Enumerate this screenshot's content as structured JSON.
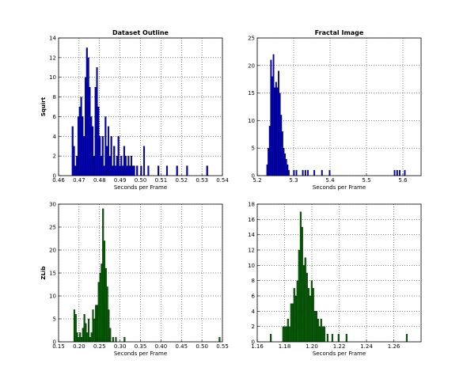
{
  "chart_data": [
    {
      "type": "bar",
      "title": "Dataset Outline",
      "xlabel": "Seconds per Frame",
      "ylabel": "Squirt",
      "color": "#0000cc",
      "grid": true,
      "xlim": [
        0.46,
        0.54
      ],
      "ylim": [
        0,
        14
      ],
      "xticks": [
        "0.46",
        "0.47",
        "0.48",
        "0.49",
        "0.50",
        "0.51",
        "0.52",
        "0.53",
        "0.54"
      ],
      "yticks": [
        "0",
        "2",
        "4",
        "6",
        "8",
        "10",
        "12",
        "14"
      ],
      "bin_width": 0.0007,
      "bars": [
        {
          "x": 0.4665,
          "y": 5
        },
        {
          "x": 0.4672,
          "y": 3
        },
        {
          "x": 0.4679,
          "y": 1
        },
        {
          "x": 0.4686,
          "y": 2
        },
        {
          "x": 0.4693,
          "y": 6
        },
        {
          "x": 0.47,
          "y": 7
        },
        {
          "x": 0.4707,
          "y": 8
        },
        {
          "x": 0.4714,
          "y": 6
        },
        {
          "x": 0.4721,
          "y": 4
        },
        {
          "x": 0.4728,
          "y": 10
        },
        {
          "x": 0.4735,
          "y": 13
        },
        {
          "x": 0.4742,
          "y": 12
        },
        {
          "x": 0.4749,
          "y": 9
        },
        {
          "x": 0.4756,
          "y": 6
        },
        {
          "x": 0.4763,
          "y": 5
        },
        {
          "x": 0.477,
          "y": 2
        },
        {
          "x": 0.4777,
          "y": 9
        },
        {
          "x": 0.4784,
          "y": 11
        },
        {
          "x": 0.4791,
          "y": 7
        },
        {
          "x": 0.4798,
          "y": 4
        },
        {
          "x": 0.4805,
          "y": 2
        },
        {
          "x": 0.4812,
          "y": 4
        },
        {
          "x": 0.4819,
          "y": 1
        },
        {
          "x": 0.4826,
          "y": 6
        },
        {
          "x": 0.4833,
          "y": 3
        },
        {
          "x": 0.484,
          "y": 5
        },
        {
          "x": 0.4847,
          "y": 2
        },
        {
          "x": 0.4854,
          "y": 4
        },
        {
          "x": 0.4861,
          "y": 1
        },
        {
          "x": 0.4868,
          "y": 3
        },
        {
          "x": 0.4875,
          "y": 1
        },
        {
          "x": 0.4882,
          "y": 2
        },
        {
          "x": 0.4889,
          "y": 4
        },
        {
          "x": 0.4896,
          "y": 1
        },
        {
          "x": 0.4903,
          "y": 2
        },
        {
          "x": 0.491,
          "y": 1
        },
        {
          "x": 0.4917,
          "y": 3
        },
        {
          "x": 0.4924,
          "y": 2
        },
        {
          "x": 0.4931,
          "y": 1
        },
        {
          "x": 0.4938,
          "y": 2
        },
        {
          "x": 0.4945,
          "y": 1
        },
        {
          "x": 0.4952,
          "y": 2
        },
        {
          "x": 0.4959,
          "y": 1
        },
        {
          "x": 0.4966,
          "y": 1
        },
        {
          "x": 0.498,
          "y": 1
        },
        {
          "x": 0.5,
          "y": 1
        },
        {
          "x": 0.5014,
          "y": 3
        },
        {
          "x": 0.5035,
          "y": 1
        },
        {
          "x": 0.5084,
          "y": 1
        },
        {
          "x": 0.5126,
          "y": 1
        },
        {
          "x": 0.5175,
          "y": 1
        },
        {
          "x": 0.5224,
          "y": 1
        },
        {
          "x": 0.5322,
          "y": 1
        }
      ]
    },
    {
      "type": "bar",
      "title": "Fractal Image",
      "xlabel": "Seconds per Frame",
      "ylabel": "",
      "color": "#0000cc",
      "grid": true,
      "xlim": [
        5.2,
        5.65
      ],
      "ylim": [
        0,
        25
      ],
      "xticks": [
        "5.2",
        "5.3",
        "5.4",
        "5.5",
        "5.6"
      ],
      "yticks": [
        "0",
        "5",
        "10",
        "15",
        "20",
        "25"
      ],
      "bin_width": 0.0035,
      "bars": [
        {
          "x": 5.2255,
          "y": 2
        },
        {
          "x": 5.229,
          "y": 5
        },
        {
          "x": 5.2325,
          "y": 9
        },
        {
          "x": 5.236,
          "y": 21
        },
        {
          "x": 5.2395,
          "y": 18
        },
        {
          "x": 5.243,
          "y": 22
        },
        {
          "x": 5.2465,
          "y": 16
        },
        {
          "x": 5.25,
          "y": 17
        },
        {
          "x": 5.2535,
          "y": 16
        },
        {
          "x": 5.257,
          "y": 19
        },
        {
          "x": 5.2605,
          "y": 15
        },
        {
          "x": 5.264,
          "y": 11
        },
        {
          "x": 5.2675,
          "y": 8
        },
        {
          "x": 5.271,
          "y": 5
        },
        {
          "x": 5.2745,
          "y": 4
        },
        {
          "x": 5.278,
          "y": 3
        },
        {
          "x": 5.2815,
          "y": 2
        },
        {
          "x": 5.285,
          "y": 1
        },
        {
          "x": 5.299,
          "y": 1
        },
        {
          "x": 5.306,
          "y": 1
        },
        {
          "x": 5.3235,
          "y": 1
        },
        {
          "x": 5.3305,
          "y": 1
        },
        {
          "x": 5.3375,
          "y": 1
        },
        {
          "x": 5.355,
          "y": 1
        },
        {
          "x": 5.376,
          "y": 1
        },
        {
          "x": 5.397,
          "y": 1
        },
        {
          "x": 5.5755,
          "y": 1
        },
        {
          "x": 5.5825,
          "y": 1
        },
        {
          "x": 5.5895,
          "y": 1
        },
        {
          "x": 5.6035,
          "y": 1
        }
      ]
    },
    {
      "type": "bar",
      "title": "",
      "xlabel": "Seconds per Frame",
      "ylabel": "ZLib",
      "color": "#006600",
      "grid": true,
      "xlim": [
        0.15,
        0.55
      ],
      "ylim": [
        0,
        30
      ],
      "xticks": [
        "0.15",
        "0.20",
        "0.25",
        "0.30",
        "0.35",
        "0.40",
        "0.45",
        "0.50",
        "0.55"
      ],
      "yticks": [
        "0",
        "5",
        "10",
        "15",
        "20",
        "25",
        "30"
      ],
      "bin_width": 0.0035,
      "bars": [
        {
          "x": 0.1868,
          "y": 7
        },
        {
          "x": 0.1903,
          "y": 6
        },
        {
          "x": 0.1938,
          "y": 2
        },
        {
          "x": 0.1973,
          "y": 1
        },
        {
          "x": 0.2008,
          "y": 2
        },
        {
          "x": 0.2043,
          "y": 1
        },
        {
          "x": 0.2078,
          "y": 3
        },
        {
          "x": 0.2113,
          "y": 6
        },
        {
          "x": 0.2148,
          "y": 4
        },
        {
          "x": 0.2183,
          "y": 2
        },
        {
          "x": 0.2218,
          "y": 5
        },
        {
          "x": 0.2253,
          "y": 1
        },
        {
          "x": 0.2288,
          "y": 2
        },
        {
          "x": 0.2323,
          "y": 7
        },
        {
          "x": 0.2358,
          "y": 5
        },
        {
          "x": 0.2393,
          "y": 8
        },
        {
          "x": 0.2428,
          "y": 8
        },
        {
          "x": 0.2463,
          "y": 13
        },
        {
          "x": 0.2498,
          "y": 15
        },
        {
          "x": 0.2533,
          "y": 17
        },
        {
          "x": 0.2568,
          "y": 29
        },
        {
          "x": 0.2603,
          "y": 22
        },
        {
          "x": 0.2638,
          "y": 16
        },
        {
          "x": 0.2673,
          "y": 12
        },
        {
          "x": 0.2708,
          "y": 7
        },
        {
          "x": 0.2743,
          "y": 3
        },
        {
          "x": 0.2813,
          "y": 1
        },
        {
          "x": 0.2883,
          "y": 1
        },
        {
          "x": 0.3093,
          "y": 1
        },
        {
          "x": 0.5413,
          "y": 1
        }
      ]
    },
    {
      "type": "bar",
      "title": "",
      "xlabel": "Seconds per Frame",
      "ylabel": "",
      "color": "#006600",
      "grid": true,
      "xlim": [
        1.16,
        1.28
      ],
      "ylim": [
        0,
        18
      ],
      "xticks": [
        "1.16",
        "1.18",
        "1.20",
        "1.22",
        "1.24",
        "1.26"
      ],
      "yticks": [
        "0",
        "2",
        "4",
        "6",
        "8",
        "10",
        "12",
        "14",
        "16",
        "18"
      ],
      "bin_width": 0.00105,
      "bars": [
        {
          "x": 1.1694,
          "y": 1
        },
        {
          "x": 1.1785,
          "y": 2
        },
        {
          "x": 1.1797,
          "y": 2
        },
        {
          "x": 1.1809,
          "y": 2
        },
        {
          "x": 1.182,
          "y": 3
        },
        {
          "x": 1.1831,
          "y": 2
        },
        {
          "x": 1.1843,
          "y": 5
        },
        {
          "x": 1.1855,
          "y": 5
        },
        {
          "x": 1.1866,
          "y": 7
        },
        {
          "x": 1.1878,
          "y": 6
        },
        {
          "x": 1.1889,
          "y": 8
        },
        {
          "x": 1.1901,
          "y": 12
        },
        {
          "x": 1.1913,
          "y": 17
        },
        {
          "x": 1.1924,
          "y": 15
        },
        {
          "x": 1.1936,
          "y": 10
        },
        {
          "x": 1.1947,
          "y": 11
        },
        {
          "x": 1.1959,
          "y": 9
        },
        {
          "x": 1.1971,
          "y": 7
        },
        {
          "x": 1.1982,
          "y": 6
        },
        {
          "x": 1.1994,
          "y": 8
        },
        {
          "x": 1.2005,
          "y": 7
        },
        {
          "x": 1.2017,
          "y": 4
        },
        {
          "x": 1.2029,
          "y": 4
        },
        {
          "x": 1.204,
          "y": 3
        },
        {
          "x": 1.2052,
          "y": 2
        },
        {
          "x": 1.2063,
          "y": 3
        },
        {
          "x": 1.2075,
          "y": 2
        },
        {
          "x": 1.2087,
          "y": 2
        },
        {
          "x": 1.211,
          "y": 1
        },
        {
          "x": 1.2145,
          "y": 1
        },
        {
          "x": 1.2191,
          "y": 1
        },
        {
          "x": 1.2249,
          "y": 1
        },
        {
          "x": 1.269,
          "y": 1
        }
      ]
    }
  ]
}
